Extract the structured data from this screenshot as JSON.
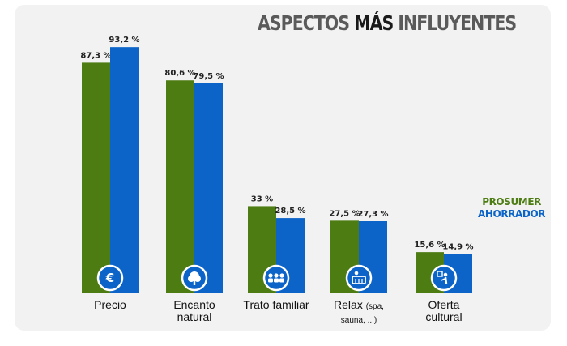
{
  "title": {
    "normal": "ASPECTOS",
    "highlight": "MÁS",
    "rest": "INFLUYENTES"
  },
  "legend": [
    {
      "label": "PROSUMER",
      "color": "#4c7c12"
    },
    {
      "label": "AHORRADOR",
      "color": "#0c64c8"
    }
  ],
  "chart_data": {
    "type": "bar",
    "title": "ASPECTOS MÁS INFLUYENTES",
    "categories": [
      {
        "label": "Precio",
        "label_small": "",
        "icon": "euro-icon"
      },
      {
        "label": "Encanto natural",
        "label_small": "",
        "icon": "tree-icon"
      },
      {
        "label": "Trato familiar",
        "label_small": "",
        "icon": "family-icon"
      },
      {
        "label": "Relax",
        "label_small": "(spa, sauna, ...)",
        "icon": "hot-tub-icon"
      },
      {
        "label": "Oferta cultural",
        "label_small": "",
        "icon": "museum-visitor-icon"
      }
    ],
    "series": [
      {
        "name": "PROSUMER",
        "color": "#4c7c12",
        "values": [
          87.3,
          80.6,
          33,
          27.5,
          15.6
        ],
        "value_labels": [
          "87,3 %",
          "80,6 %",
          "33 %",
          "27,5 %",
          "15,6 %"
        ]
      },
      {
        "name": "AHORRADOR",
        "color": "#0c64c8",
        "values": [
          93.2,
          79.5,
          28.5,
          27.3,
          14.9
        ],
        "value_labels": [
          "93,2 %",
          "79,5 %",
          "28,5 %",
          "27,3 %",
          "14,9 %"
        ]
      }
    ],
    "ylim": [
      0,
      100
    ],
    "grid": false,
    "legend_position": "right"
  }
}
